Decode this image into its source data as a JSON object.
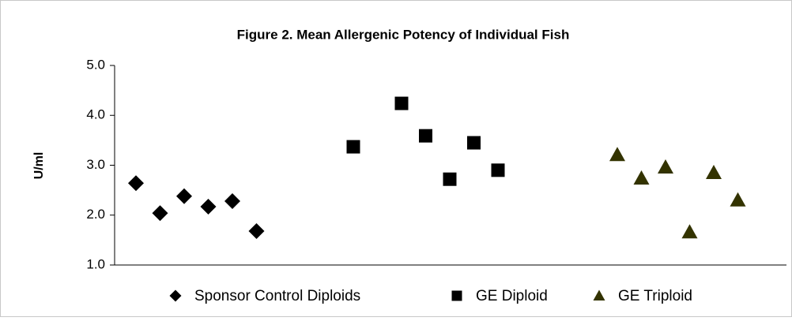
{
  "chart_data": {
    "type": "scatter",
    "title": "Figure 2.  Mean Allergenic Potency of Individual Fish",
    "y_label": "U/ml",
    "ylim": [
      1.0,
      5.0
    ],
    "yticks": [
      {
        "value": 1.0,
        "label": "1.0"
      },
      {
        "value": 2.0,
        "label": "2.0"
      },
      {
        "value": 3.0,
        "label": "3.0"
      },
      {
        "value": 4.0,
        "label": "4.0"
      },
      {
        "value": 5.0,
        "label": "5.0"
      }
    ],
    "series": [
      {
        "name": "Sponsor Control Diploids",
        "color": "#000000",
        "marker": "diamond",
        "values": [
          2.64,
          2.04,
          2.38,
          2.17,
          2.28,
          1.68
        ]
      },
      {
        "name": "GE Diploid",
        "color": "#000000",
        "marker": "square",
        "values": [
          3.37,
          4.24,
          3.59,
          2.72,
          3.45,
          2.9
        ]
      },
      {
        "name": "GE Triploid",
        "color": "#333300",
        "marker": "triangle",
        "values": [
          3.21,
          2.74,
          2.96,
          1.66,
          2.85,
          2.3
        ]
      }
    ]
  }
}
